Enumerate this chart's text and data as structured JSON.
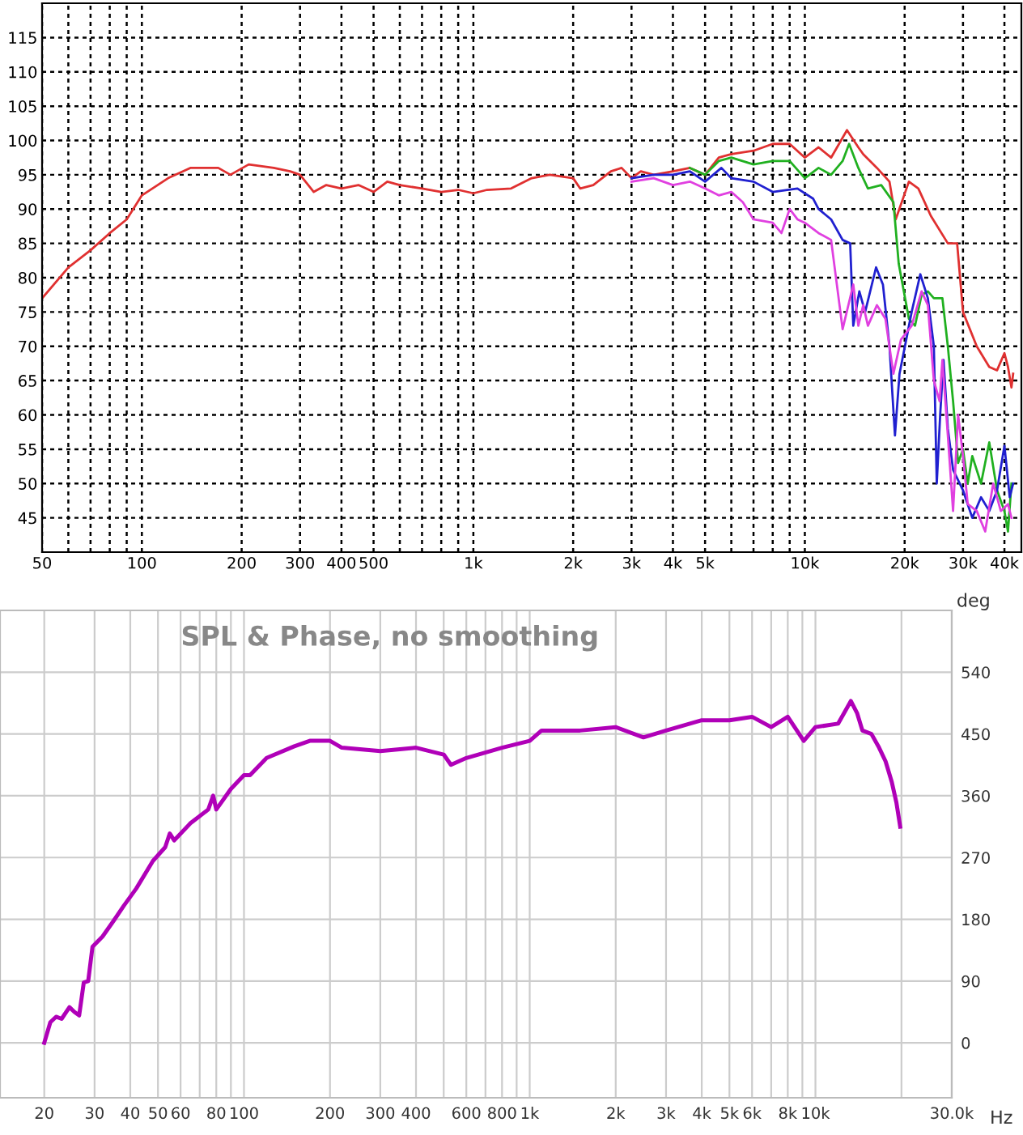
{
  "chart_data": [
    {
      "type": "line",
      "log": "x",
      "grid": true,
      "xlim": [
        50,
        45000
      ],
      "ylim": [
        40,
        120
      ],
      "xticks": [
        50,
        {
          "value": 60,
          "label": null
        },
        {
          "value": 70,
          "label": null
        },
        {
          "value": 80,
          "label": null
        },
        {
          "value": 90,
          "label": null
        },
        100,
        200,
        300,
        400,
        500,
        {
          "value": 600,
          "label": null
        },
        {
          "value": 700,
          "label": null
        },
        {
          "value": 800,
          "label": null
        },
        {
          "value": 900,
          "label": null
        },
        {
          "value": 1000,
          "label": "1k"
        },
        {
          "value": 2000,
          "label": "2k"
        },
        {
          "value": 3000,
          "label": "3k"
        },
        {
          "value": 4000,
          "label": "4k"
        },
        {
          "value": 5000,
          "label": "5k"
        },
        {
          "value": 6000,
          "label": null
        },
        {
          "value": 7000,
          "label": null
        },
        {
          "value": 8000,
          "label": null
        },
        {
          "value": 9000,
          "label": null
        },
        {
          "value": 10000,
          "label": "10k"
        },
        {
          "value": 20000,
          "label": "20k"
        },
        {
          "value": 30000,
          "label": "30k"
        },
        {
          "value": 40000,
          "label": "40k"
        }
      ],
      "yticks": [
        45,
        50,
        55,
        60,
        65,
        70,
        75,
        80,
        85,
        90,
        95,
        100,
        105,
        110,
        115
      ],
      "series": [
        {
          "color": "#e03030",
          "x": [
            50,
            60,
            70,
            80,
            90,
            100,
            120,
            140,
            170,
            185,
            210,
            250,
            280,
            300,
            330,
            360,
            400,
            450,
            500,
            550,
            600,
            700,
            800,
            900,
            1000,
            1100,
            1300,
            1500,
            1700,
            2000,
            2100,
            2300,
            2600,
            2800,
            3000,
            3200,
            3500,
            4000,
            4500,
            5000,
            5500,
            6000,
            7000,
            8000,
            9000,
            10000,
            11000,
            12000,
            13400,
            14500,
            15000,
            16500,
            18000,
            18800,
            20600,
            22000,
            24000,
            27000,
            28800,
            30000,
            33000,
            36000,
            38000,
            40000,
            41000,
            42000,
            42500
          ],
          "values": [
            77,
            81.5,
            84,
            86.5,
            88.5,
            92,
            94.5,
            96,
            96,
            95,
            96.5,
            96,
            95.5,
            95,
            92.5,
            93.5,
            93,
            93.5,
            92.5,
            94,
            93.5,
            93,
            92.5,
            92.8,
            92.3,
            92.8,
            93,
            94.5,
            95,
            94.5,
            93,
            93.5,
            95.5,
            96,
            94.5,
            95.5,
            95,
            95.5,
            96,
            95,
            97.5,
            98,
            98.5,
            99.5,
            99.5,
            97.5,
            99,
            97.5,
            101.5,
            99,
            98,
            96,
            94,
            88.5,
            94,
            93,
            89,
            85,
            85,
            75,
            70,
            67,
            66.5,
            69,
            67,
            64,
            66
          ]
        },
        {
          "color": "#20b020",
          "x": [
            4500,
            5000,
            5500,
            6000,
            7000,
            8000,
            9000,
            10000,
            11000,
            12000,
            13000,
            13600,
            14500,
            15500,
            17000,
            18500,
            19200,
            20600,
            21500,
            22500,
            23500,
            24500,
            26000,
            27000,
            28000,
            29000,
            30000,
            31000,
            32000,
            34000,
            36000,
            38000,
            40000,
            41000,
            42000
          ],
          "values": [
            96,
            95,
            97,
            97.5,
            96.5,
            97,
            97,
            94.5,
            96,
            95,
            97,
            99.5,
            96,
            93,
            93.5,
            91,
            82,
            74,
            73,
            77.5,
            78,
            77,
            77,
            70,
            62,
            53,
            55,
            50,
            54,
            50,
            56,
            49,
            46,
            43,
            50
          ]
        },
        {
          "color": "#2020d0",
          "x": [
            3000,
            3500,
            4000,
            4500,
            5000,
            5600,
            6000,
            7000,
            8000,
            9500,
            10600,
            11000,
            12000,
            13000,
            13700,
            14000,
            14600,
            15200,
            16400,
            17200,
            18000,
            18700,
            19300,
            21000,
            22300,
            23500,
            24500,
            25000,
            25600,
            26200,
            27000,
            28000,
            30000,
            32000,
            34000,
            36000,
            38000,
            40000,
            41500,
            42500
          ],
          "values": [
            94.5,
            95,
            95,
            95.5,
            94,
            96,
            94.5,
            94,
            92.5,
            93,
            91.5,
            90,
            88.5,
            85.5,
            85,
            73,
            78,
            75,
            81.5,
            79,
            70,
            57,
            66,
            75,
            80.5,
            77,
            70,
            50,
            60,
            68,
            58,
            52,
            49,
            45,
            48,
            46,
            49,
            55.5,
            48,
            50
          ]
        },
        {
          "color": "#e040e0",
          "x": [
            3000,
            3500,
            4000,
            4500,
            5000,
            5500,
            6000,
            6500,
            7000,
            8000,
            8500,
            9000,
            9500,
            10000,
            11000,
            12000,
            13000,
            14000,
            14500,
            15000,
            15500,
            16500,
            17500,
            18500,
            19500,
            21000,
            22500,
            23500,
            24500,
            25500,
            26000,
            27000,
            28000,
            29000,
            30000,
            31000,
            33000,
            35000,
            37000,
            39000,
            41000,
            42000
          ],
          "values": [
            94,
            94.5,
            93.5,
            94,
            93,
            92,
            92.5,
            91,
            88.5,
            88,
            86.5,
            90,
            88.5,
            88,
            86.5,
            85.5,
            72.5,
            79,
            73,
            76,
            73,
            76,
            74,
            66,
            71,
            73,
            78,
            76,
            65,
            62,
            68,
            57,
            46,
            60,
            54,
            47,
            46,
            43,
            50,
            46,
            47,
            45
          ]
        }
      ]
    },
    {
      "type": "line",
      "log": "x",
      "grid": true,
      "title": "SPL & Phase, no smoothing",
      "xlabel": "Hz",
      "ylabel": "deg",
      "xlim": [
        14,
        30000
      ],
      "ylim": [
        -80,
        630
      ],
      "xticks": [
        20,
        30,
        40,
        50,
        60,
        {
          "value": 70,
          "label": null
        },
        80,
        {
          "value": 90,
          "label": null
        },
        100,
        200,
        300,
        400,
        {
          "value": 500,
          "label": null
        },
        600,
        {
          "value": 700,
          "label": null
        },
        800,
        {
          "value": 900,
          "label": null
        },
        {
          "value": 1000,
          "label": "1k"
        },
        {
          "value": 2000,
          "label": "2k"
        },
        {
          "value": 3000,
          "label": "3k"
        },
        {
          "value": 4000,
          "label": "4k"
        },
        {
          "value": 5000,
          "label": "5k"
        },
        {
          "value": 6000,
          "label": "6k"
        },
        {
          "value": 7000,
          "label": null
        },
        {
          "value": 8000,
          "label": "8k"
        },
        {
          "value": 9000,
          "label": null
        },
        {
          "value": 10000,
          "label": "10k"
        },
        {
          "value": 20000,
          "label": null
        },
        {
          "value": 30000,
          "label": "30.0k"
        }
      ],
      "yticks": [
        0,
        90,
        180,
        270,
        360,
        450,
        540
      ],
      "series": [
        {
          "color": "#b000b8",
          "x": [
            20,
            21,
            22,
            23,
            24.5,
            25.5,
            26.5,
            27.5,
            28.5,
            29.5,
            32,
            35,
            38,
            42,
            48,
            53,
            55,
            57,
            65,
            75,
            78,
            80,
            90,
            100,
            105,
            120,
            150,
            170,
            200,
            220,
            300,
            400,
            500,
            530,
            600,
            800,
            1000,
            1100,
            1500,
            2000,
            2500,
            3000,
            4000,
            5000,
            6000,
            7000,
            8000,
            9100,
            10000,
            12000,
            13300,
            14000,
            14600,
            15700,
            16700,
            17600,
            18500,
            19200,
            19800
          ],
          "values": [
            0,
            30,
            38,
            35,
            52,
            45,
            40,
            88,
            90,
            140,
            155,
            178,
            200,
            225,
            265,
            285,
            305,
            295,
            320,
            340,
            360,
            340,
            370,
            390,
            390,
            415,
            432,
            440,
            440,
            430,
            425,
            430,
            420,
            405,
            415,
            430,
            440,
            455,
            455,
            460,
            445,
            455,
            470,
            470,
            475,
            460,
            475,
            440,
            460,
            465,
            498,
            480,
            455,
            450,
            430,
            410,
            380,
            350,
            315
          ]
        }
      ]
    }
  ]
}
